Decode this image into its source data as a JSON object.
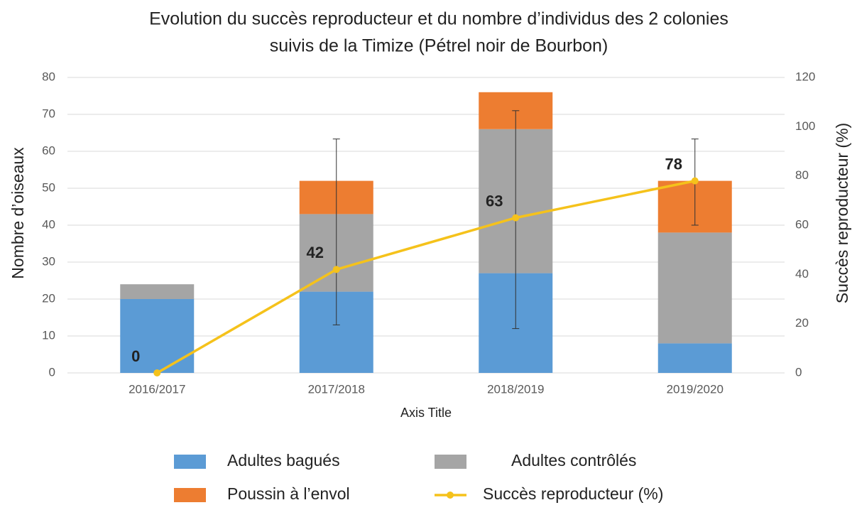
{
  "chart_data": {
    "type": "bar",
    "title_lines": [
      "Evolution du succès reproducteur et du nombre d’individus des 2 colonies",
      "suivis de la Timize (Pétrel noir de Bourbon)"
    ],
    "x_label": "Axis Title",
    "y_label": "Nombre d’oiseaux",
    "y2_label": "Succès reproducteur (%)",
    "categories": [
      "2016/2017",
      "2017/2018",
      "2018/2019",
      "2019/2020"
    ],
    "series": [
      {
        "name": "Adultes bagués",
        "color": "#5b9bd5",
        "values": [
          20,
          22,
          27,
          8
        ]
      },
      {
        "name": "Adultes contrôlés",
        "color": "#a5a5a5",
        "values": [
          4,
          21,
          39,
          30
        ]
      },
      {
        "name": "Poussin à l’envol",
        "color": "#ed7d31",
        "values": [
          0,
          9,
          10,
          14
        ]
      },
      {
        "name": "Succès reproducteur (%)",
        "color": "#f5c21b",
        "type": "line",
        "axis": "y2",
        "values": [
          0,
          42,
          63,
          78
        ],
        "error_plus": [
          null,
          53,
          43.5,
          17
        ],
        "error_minus": [
          null,
          22.5,
          45,
          18
        ]
      }
    ],
    "stacked": true,
    "ylim": [
      0,
      80
    ],
    "yticks": [
      0,
      10,
      20,
      30,
      40,
      50,
      60,
      70,
      80
    ],
    "y2lim": [
      0,
      120
    ],
    "y2ticks": [
      0,
      20,
      40,
      60,
      80,
      100,
      120
    ],
    "grid": true
  }
}
